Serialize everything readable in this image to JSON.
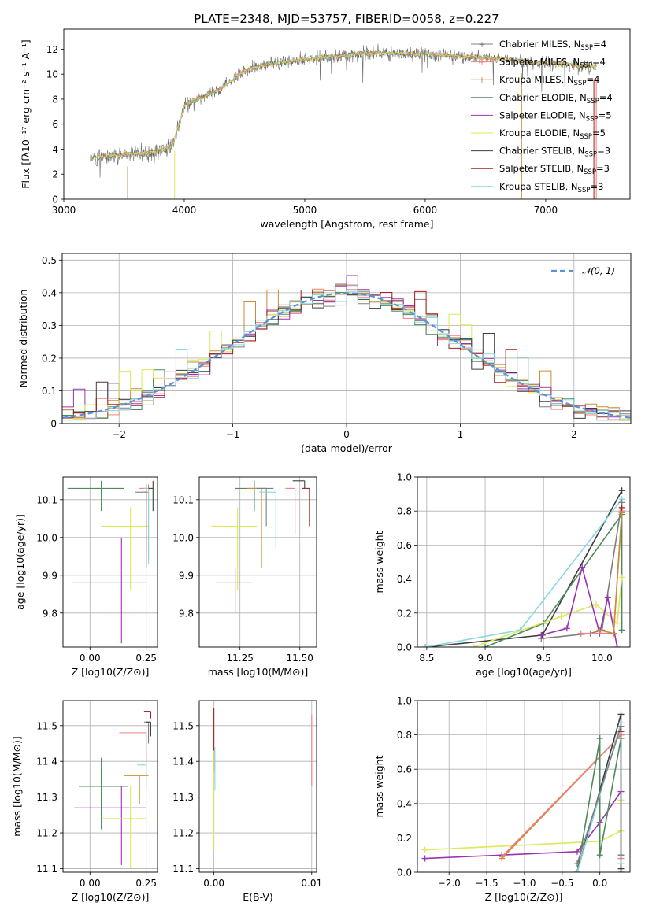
{
  "figure_title": "PLATE=2348, MJD=53757, FIBERID=0058, z=0.227",
  "colors": [
    "#7f7f7f",
    "#f07f7f",
    "#c98d3a",
    "#4e8a5c",
    "#9b32b4",
    "#dde85a",
    "#3d3d3d",
    "#a21f1f",
    "#89d7e6"
  ],
  "chart_data": [
    {
      "id": "spectrum",
      "type": "line",
      "title": "PLATE=2348, MJD=53757, FIBERID=0058, z=0.227",
      "xlabel": "wavelength [Angstrom, rest frame]",
      "ylabel": "Flux [fλ10⁻¹⁷ erg cm⁻² s⁻¹ A⁻¹]",
      "xlim": [
        3000,
        7700
      ],
      "ylim": [
        0,
        13.6
      ],
      "xticks": [
        3000,
        4000,
        5000,
        6000,
        7000
      ],
      "yticks": [
        0,
        2,
        4,
        6,
        8,
        10,
        12
      ],
      "grid": false,
      "legend_position": "top-right",
      "series_legend": [
        {
          "label": "Chabrier MILES, N_SSP=4",
          "color": "#7f7f7f"
        },
        {
          "label": "Salpeter MILES, N_SSP=4",
          "color": "#f07f7f"
        },
        {
          "label": "Kroupa MILES, N_SSP=4",
          "color": "#c98d3a"
        },
        {
          "label": "Chabrier ELODIE, N_SSP=4",
          "color": "#4e8a5c"
        },
        {
          "label": "Salpeter ELODIE, N_SSP=5",
          "color": "#9b32b4"
        },
        {
          "label": "Kroupa ELODIE, N_SSP=5",
          "color": "#dde85a"
        },
        {
          "label": "Chabrier STELIB, N_SSP=3",
          "color": "#3d3d3d"
        },
        {
          "label": "Salpeter STELIB, N_SSP=3",
          "color": "#a21f1f"
        },
        {
          "label": "Kroupa STELIB, N_SSP=3",
          "color": "#89d7e6"
        }
      ],
      "continuum": {
        "x": [
          3220,
          3500,
          3700,
          3900,
          4000,
          4300,
          4500,
          4700,
          5000,
          5500,
          6000,
          6500,
          7000,
          7400
        ],
        "y": [
          3.3,
          3.6,
          3.7,
          4.2,
          7.5,
          8.8,
          10.3,
          10.8,
          11.2,
          11.7,
          11.6,
          11.3,
          10.9,
          10.6
        ]
      },
      "data_range": [
        3220,
        7420
      ]
    },
    {
      "id": "residuals",
      "type": "bar",
      "xlabel": "(data-model)/error",
      "ylabel": "Normed distribution",
      "xlim": [
        -2.5,
        2.5
      ],
      "ylim": [
        0,
        0.52
      ],
      "xticks": [
        -2,
        -1,
        0,
        1,
        2
      ],
      "yticks": [
        0.0,
        0.1,
        0.2,
        0.3,
        0.4,
        0.5
      ],
      "grid": true,
      "bin_width": 0.1,
      "legend_position": "top-right",
      "gaussian": {
        "label": "𝒩(0, 1)",
        "color": "#5b8fd6"
      },
      "histogram_series": 9
    },
    {
      "id": "age-vs-Z",
      "type": "scatter",
      "xlabel": "Z [log10(Z/Z⊙)]",
      "ylabel": "age [log10(age/yr)]",
      "xlim": [
        -0.12,
        0.3
      ],
      "ylim": [
        9.71,
        10.16
      ],
      "xticks": [
        0.0,
        0.25
      ],
      "yticks": [
        9.8,
        9.9,
        10.0,
        10.1
      ],
      "grid": true,
      "points": [
        {
          "x": 0.05,
          "y": 10.13,
          "xerr": [
            0.15,
            0.1
          ],
          "yerr": [
            0.06,
            0.02
          ],
          "c": 3
        },
        {
          "x": 0.14,
          "y": 9.88,
          "xerr": [
            0.22,
            0.11
          ],
          "yerr": [
            0.16,
            0.12
          ],
          "c": 4
        },
        {
          "x": 0.18,
          "y": 10.03,
          "xerr": [
            0.13,
            0.08
          ],
          "yerr": [
            0.17,
            0.05
          ],
          "c": 5
        },
        {
          "x": 0.25,
          "y": 10.13,
          "xerr": [
            0.03,
            0.0
          ],
          "yerr": [
            0.17,
            0.0
          ],
          "c": 1
        },
        {
          "x": 0.26,
          "y": 10.12,
          "xerr": [
            0.02,
            0.0
          ],
          "yerr": [
            0.18,
            0.02
          ],
          "c": 2
        },
        {
          "x": 0.26,
          "y": 10.13,
          "xerr": [
            0.02,
            0.0
          ],
          "yerr": [
            0.2,
            0.0
          ],
          "c": 8
        },
        {
          "x": 0.28,
          "y": 10.13,
          "xerr": [
            0.02,
            0.0
          ],
          "yerr": [
            0.06,
            0.02
          ],
          "c": 6
        },
        {
          "x": 0.25,
          "y": 10.12,
          "xerr": [
            0.05,
            0.0
          ],
          "yerr": [
            0.2,
            0.02
          ],
          "c": 0
        }
      ]
    },
    {
      "id": "age-vs-mass",
      "type": "scatter",
      "xlabel": "mass [log10(M/M⊙)]",
      "ylabel": "",
      "xlim": [
        11.08,
        11.57
      ],
      "ylim": [
        9.71,
        10.16
      ],
      "xticks": [
        11.25,
        11.5
      ],
      "yticks": [
        9.8,
        9.9,
        10.0,
        10.1
      ],
      "grid": true,
      "points": [
        {
          "x": 11.23,
          "y": 9.88,
          "xerr": [
            0.08,
            0.07
          ],
          "yerr": [
            0.08,
            0.04
          ],
          "c": 4
        },
        {
          "x": 11.24,
          "y": 10.03,
          "xerr": [
            0.11,
            0.08
          ],
          "yerr": [
            0.17,
            0.05
          ],
          "c": 5
        },
        {
          "x": 11.31,
          "y": 10.13,
          "xerr": [
            0.08,
            0.05
          ],
          "yerr": [
            0.06,
            0.02
          ],
          "c": 3
        },
        {
          "x": 11.34,
          "y": 10.13,
          "xerr": [
            0.06,
            0.02
          ],
          "yerr": [
            0.21,
            0.0
          ],
          "c": 2
        },
        {
          "x": 11.36,
          "y": 10.13,
          "xerr": [
            0.04,
            0.03
          ],
          "yerr": [
            0.1,
            0.0
          ],
          "c": 0
        },
        {
          "x": 11.4,
          "y": 10.12,
          "xerr": [
            0.07,
            0.0
          ],
          "yerr": [
            0.15,
            0.0
          ],
          "c": 8
        },
        {
          "x": 11.48,
          "y": 10.13,
          "xerr": [
            0.04,
            0.0
          ],
          "yerr": [
            0.12,
            0.0
          ],
          "c": 1
        },
        {
          "x": 11.52,
          "y": 10.15,
          "xerr": [
            0.05,
            0.0
          ],
          "yerr": [
            0.02,
            0.0
          ],
          "c": 6
        },
        {
          "x": 11.54,
          "y": 10.13,
          "xerr": [
            0.03,
            0.0
          ],
          "yerr": [
            0.1,
            0.0
          ],
          "c": 7
        }
      ]
    },
    {
      "id": "weight-vs-age",
      "type": "line",
      "xlabel": "age  [log10(age/yr)]",
      "ylabel": "mass weight",
      "xlim": [
        8.42,
        10.24
      ],
      "ylim": [
        0,
        1.0
      ],
      "xticks": [
        8.5,
        9.0,
        9.5,
        10.0
      ],
      "yticks": [
        0.0,
        0.2,
        0.4,
        0.6,
        0.8,
        1.0
      ],
      "grid": true,
      "series": [
        {
          "c": 6,
          "x": [
            8.49,
            9.49,
            10.17
          ],
          "y": [
            0.0,
            0.07,
            0.92
          ]
        },
        {
          "c": 8,
          "x": [
            8.49,
            9.3,
            10.17
          ],
          "y": [
            0.0,
            0.1,
            0.87
          ]
        },
        {
          "c": 3,
          "x": [
            9.0,
            9.5,
            10.17,
            10.17
          ],
          "y": [
            0.0,
            0.14,
            0.78,
            0.1
          ]
        },
        {
          "c": 0,
          "x": [
            9.48,
            9.9,
            10.0,
            10.17
          ],
          "y": [
            0.05,
            0.08,
            0.1,
            0.85
          ]
        },
        {
          "c": 5,
          "x": [
            8.9,
            9.65,
            9.95,
            10.13,
            10.17
          ],
          "y": [
            0.0,
            0.18,
            0.25,
            0.14,
            0.41
          ]
        },
        {
          "c": 4,
          "x": [
            9.48,
            9.7,
            9.83,
            9.98,
            10.05,
            10.13
          ],
          "y": [
            0.07,
            0.11,
            0.47,
            0.08,
            0.29,
            0.0
          ]
        },
        {
          "c": 1,
          "x": [
            9.82,
            10.1,
            10.17
          ],
          "y": [
            0.08,
            0.08,
            0.8
          ]
        },
        {
          "c": 2,
          "x": [
            9.98,
            10.1,
            10.17
          ],
          "y": [
            0.1,
            0.08,
            0.79
          ]
        },
        {
          "c": 7,
          "x": [
            10.17
          ],
          "y": [
            0.82
          ]
        }
      ]
    },
    {
      "id": "mass-vs-Z",
      "type": "scatter",
      "xlabel": "Z [log10(Z/Z⊙)]",
      "ylabel": "mass [log10(M/M⊙)]",
      "xlim": [
        -0.12,
        0.3
      ],
      "ylim": [
        11.09,
        11.57
      ],
      "xticks": [
        0.0,
        0.25
      ],
      "yticks": [
        11.1,
        11.2,
        11.3,
        11.4,
        11.5
      ],
      "grid": true,
      "points": [
        {
          "x": 0.05,
          "y": 11.33,
          "xerr": [
            0.1,
            0.12
          ],
          "yerr": [
            0.12,
            0.08
          ],
          "c": 3
        },
        {
          "x": 0.14,
          "y": 11.27,
          "xerr": [
            0.21,
            0.11
          ],
          "yerr": [
            0.16,
            0.06
          ],
          "c": 4
        },
        {
          "x": 0.18,
          "y": 11.24,
          "xerr": [
            0.13,
            0.07
          ],
          "yerr": [
            0.14,
            0.09
          ],
          "c": 5
        },
        {
          "x": 0.22,
          "y": 11.36,
          "xerr": [
            0.07,
            0.04
          ],
          "yerr": [
            0.08,
            0.0
          ],
          "c": 2
        },
        {
          "x": 0.25,
          "y": 11.39,
          "xerr": [
            0.04,
            0.0
          ],
          "yerr": [
            0.06,
            0.03
          ],
          "c": 8
        },
        {
          "x": 0.25,
          "y": 11.48,
          "xerr": [
            0.12,
            0.0
          ],
          "yerr": [
            0.08,
            0.0
          ],
          "c": 1
        },
        {
          "x": 0.26,
          "y": 11.51,
          "xerr": [
            0.02,
            0.0
          ],
          "yerr": [
            0.06,
            0.0
          ],
          "c": 0
        },
        {
          "x": 0.27,
          "y": 11.54,
          "xerr": [
            0.03,
            0.0
          ],
          "yerr": [
            0.02,
            0.0
          ],
          "c": 7
        },
        {
          "x": 0.27,
          "y": 11.51,
          "xerr": [
            0.02,
            0.0
          ],
          "yerr": [
            0.04,
            0.0
          ],
          "c": 6
        }
      ]
    },
    {
      "id": "mass-vs-EBV",
      "type": "scatter",
      "xlabel": "E(B-V)",
      "ylabel": "",
      "xlim": [
        -0.0015,
        0.0105
      ],
      "ylim": [
        11.09,
        11.57
      ],
      "xticks": [
        0.0,
        0.01
      ],
      "yticks": [
        11.1,
        11.2,
        11.3,
        11.4,
        11.5
      ],
      "grid": true,
      "points": [
        {
          "x": 0.0,
          "y": 11.46,
          "xerr": [
            0,
            0
          ],
          "yerr": [
            0.09,
            0.09
          ],
          "c": 7
        },
        {
          "x": 0.0,
          "y": 11.3,
          "xerr": [
            0,
            0
          ],
          "yerr": [
            0.15,
            0.13
          ],
          "c": 5
        },
        {
          "x": 0.0001,
          "y": 11.38,
          "xerr": [
            0,
            0
          ],
          "yerr": [
            0.06,
            0.06
          ],
          "c": 8
        },
        {
          "x": 0.01,
          "y": 11.43,
          "xerr": [
            0,
            0
          ],
          "yerr": [
            0.1,
            0.1
          ],
          "c": 1
        }
      ]
    },
    {
      "id": "weight-vs-Z",
      "type": "line",
      "xlabel": "Z [log10(Z/Z⊙)]",
      "ylabel": "mass weight",
      "xlim": [
        -2.42,
        0.4
      ],
      "ylim": [
        0,
        1.0
      ],
      "xticks": [
        -2.0,
        -1.5,
        -1.0,
        -0.5,
        0.0
      ],
      "yticks": [
        0.0,
        0.2,
        0.4,
        0.6,
        0.8,
        1.0
      ],
      "grid": true,
      "series": [
        {
          "c": 4,
          "x": [
            -2.32,
            -1.3,
            -0.3,
            0.0,
            0.28,
            0.28
          ],
          "y": [
            0.08,
            0.1,
            0.12,
            0.29,
            0.47,
            0.0
          ]
        },
        {
          "c": 5,
          "x": [
            -2.32,
            0.0,
            0.28,
            0.28
          ],
          "y": [
            0.13,
            0.18,
            0.24,
            0.42
          ]
        },
        {
          "c": 2,
          "x": [
            -1.3,
            0.28,
            0.28
          ],
          "y": [
            0.08,
            0.8,
            0.1
          ]
        },
        {
          "c": 1,
          "x": [
            -1.3,
            0.28,
            0.28
          ],
          "y": [
            0.09,
            0.8,
            0.08
          ]
        },
        {
          "c": 3,
          "x": [
            -0.3,
            0.0,
            0.0,
            0.28
          ],
          "y": [
            0.0,
            0.78,
            0.1,
            0.78
          ]
        },
        {
          "c": 6,
          "x": [
            -0.3,
            0.28,
            0.28
          ],
          "y": [
            0.0,
            0.92,
            0.02
          ]
        },
        {
          "c": 8,
          "x": [
            -0.3,
            0.28,
            0.28
          ],
          "y": [
            0.0,
            0.87,
            0.05
          ]
        },
        {
          "c": 0,
          "x": [
            -0.3,
            0.28,
            0.28
          ],
          "y": [
            0.05,
            0.85,
            0.1
          ]
        },
        {
          "c": 7,
          "x": [
            0.28
          ],
          "y": [
            0.82
          ]
        }
      ]
    }
  ]
}
